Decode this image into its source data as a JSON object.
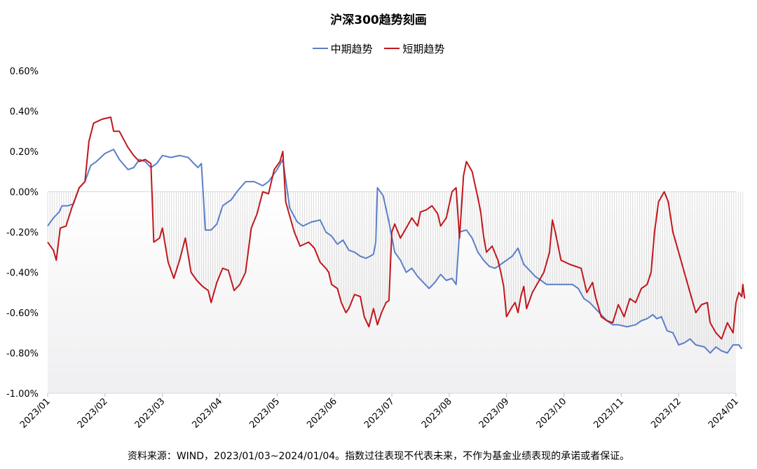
{
  "chart_data": {
    "type": "line",
    "title": "沪深300趋势刻画",
    "ylim": [
      -1.0,
      0.6
    ],
    "y_ticks": [
      "0.60%",
      "0.40%",
      "0.20%",
      "0.00%",
      "-0.20%",
      "-0.40%",
      "-0.60%",
      "-0.80%",
      "-1.00%"
    ],
    "x_ticks": [
      "2023/01",
      "2023/02",
      "2023/03",
      "2023/04",
      "2023/05",
      "2023/06",
      "2023/07",
      "2023/08",
      "2023/09",
      "2023/10",
      "2023/11",
      "2023/12",
      "2024/01"
    ],
    "legend_position": "top-center",
    "series": [
      {
        "name": "中期趋势",
        "color": "#5B7FC7",
        "points": [
          [
            0.0,
            -0.17
          ],
          [
            0.1,
            -0.13
          ],
          [
            0.2,
            -0.1
          ],
          [
            0.25,
            -0.07
          ],
          [
            0.35,
            -0.07
          ],
          [
            0.45,
            -0.06
          ],
          [
            0.55,
            0.02
          ],
          [
            0.65,
            0.05
          ],
          [
            0.75,
            0.13
          ],
          [
            0.85,
            0.15
          ],
          [
            1.0,
            0.19
          ],
          [
            1.15,
            0.21
          ],
          [
            1.25,
            0.16
          ],
          [
            1.4,
            0.11
          ],
          [
            1.5,
            0.12
          ],
          [
            1.6,
            0.16
          ],
          [
            1.7,
            0.15
          ],
          [
            1.8,
            0.12
          ],
          [
            1.9,
            0.14
          ],
          [
            2.0,
            0.18
          ],
          [
            2.15,
            0.17
          ],
          [
            2.3,
            0.18
          ],
          [
            2.45,
            0.17
          ],
          [
            2.55,
            0.14
          ],
          [
            2.62,
            0.12
          ],
          [
            2.68,
            0.14
          ],
          [
            2.75,
            -0.19
          ],
          [
            2.85,
            -0.19
          ],
          [
            2.95,
            -0.16
          ],
          [
            3.05,
            -0.07
          ],
          [
            3.2,
            -0.04
          ],
          [
            3.3,
            0.0
          ],
          [
            3.45,
            0.05
          ],
          [
            3.6,
            0.05
          ],
          [
            3.75,
            0.03
          ],
          [
            3.85,
            0.05
          ],
          [
            4.0,
            0.11
          ],
          [
            4.1,
            0.16
          ],
          [
            4.15,
            0.06
          ],
          [
            4.22,
            -0.08
          ],
          [
            4.35,
            -0.15
          ],
          [
            4.45,
            -0.17
          ],
          [
            4.6,
            -0.15
          ],
          [
            4.75,
            -0.14
          ],
          [
            4.85,
            -0.2
          ],
          [
            4.95,
            -0.22
          ],
          [
            5.05,
            -0.26
          ],
          [
            5.15,
            -0.24
          ],
          [
            5.25,
            -0.29
          ],
          [
            5.35,
            -0.3
          ],
          [
            5.45,
            -0.32
          ],
          [
            5.55,
            -0.33
          ],
          [
            5.62,
            -0.32
          ],
          [
            5.68,
            -0.31
          ],
          [
            5.72,
            -0.25
          ],
          [
            5.75,
            0.02
          ],
          [
            5.85,
            -0.02
          ],
          [
            5.95,
            -0.15
          ],
          [
            6.05,
            -0.3
          ],
          [
            6.15,
            -0.34
          ],
          [
            6.25,
            -0.4
          ],
          [
            6.35,
            -0.38
          ],
          [
            6.45,
            -0.42
          ],
          [
            6.55,
            -0.45
          ],
          [
            6.65,
            -0.48
          ],
          [
            6.75,
            -0.45
          ],
          [
            6.85,
            -0.41
          ],
          [
            6.95,
            -0.44
          ],
          [
            7.05,
            -0.43
          ],
          [
            7.12,
            -0.46
          ],
          [
            7.18,
            -0.2
          ],
          [
            7.3,
            -0.19
          ],
          [
            7.4,
            -0.23
          ],
          [
            7.5,
            -0.3
          ],
          [
            7.6,
            -0.34
          ],
          [
            7.7,
            -0.37
          ],
          [
            7.8,
            -0.38
          ],
          [
            7.9,
            -0.36
          ],
          [
            8.0,
            -0.34
          ],
          [
            8.1,
            -0.32
          ],
          [
            8.2,
            -0.28
          ],
          [
            8.3,
            -0.36
          ],
          [
            8.4,
            -0.39
          ],
          [
            8.5,
            -0.42
          ],
          [
            8.6,
            -0.44
          ],
          [
            8.7,
            -0.46
          ],
          [
            8.85,
            -0.46
          ],
          [
            9.0,
            -0.46
          ],
          [
            9.15,
            -0.46
          ],
          [
            9.25,
            -0.48
          ],
          [
            9.35,
            -0.53
          ],
          [
            9.45,
            -0.55
          ],
          [
            9.55,
            -0.58
          ],
          [
            9.65,
            -0.61
          ],
          [
            9.75,
            -0.64
          ],
          [
            9.85,
            -0.66
          ],
          [
            9.95,
            -0.66
          ],
          [
            10.1,
            -0.67
          ],
          [
            10.25,
            -0.66
          ],
          [
            10.35,
            -0.64
          ],
          [
            10.45,
            -0.63
          ],
          [
            10.55,
            -0.61
          ],
          [
            10.62,
            -0.63
          ],
          [
            10.7,
            -0.62
          ],
          [
            10.8,
            -0.69
          ],
          [
            10.9,
            -0.7
          ],
          [
            11.0,
            -0.76
          ],
          [
            11.1,
            -0.75
          ],
          [
            11.2,
            -0.73
          ],
          [
            11.3,
            -0.76
          ],
          [
            11.45,
            -0.77
          ],
          [
            11.55,
            -0.8
          ],
          [
            11.65,
            -0.77
          ],
          [
            11.75,
            -0.79
          ],
          [
            11.85,
            -0.8
          ],
          [
            11.95,
            -0.76
          ],
          [
            12.05,
            -0.76
          ],
          [
            12.1,
            -0.78
          ]
        ]
      },
      {
        "name": "短期趋势",
        "color": "#C0171D",
        "points": [
          [
            0.0,
            -0.25
          ],
          [
            0.1,
            -0.29
          ],
          [
            0.15,
            -0.34
          ],
          [
            0.22,
            -0.18
          ],
          [
            0.32,
            -0.17
          ],
          [
            0.42,
            -0.08
          ],
          [
            0.55,
            0.02
          ],
          [
            0.65,
            0.05
          ],
          [
            0.72,
            0.25
          ],
          [
            0.8,
            0.34
          ],
          [
            0.95,
            0.36
          ],
          [
            1.1,
            0.37
          ],
          [
            1.15,
            0.3
          ],
          [
            1.25,
            0.3
          ],
          [
            1.4,
            0.22
          ],
          [
            1.5,
            0.18
          ],
          [
            1.6,
            0.15
          ],
          [
            1.7,
            0.16
          ],
          [
            1.8,
            0.14
          ],
          [
            1.85,
            -0.25
          ],
          [
            1.95,
            -0.23
          ],
          [
            2.0,
            -0.18
          ],
          [
            2.1,
            -0.35
          ],
          [
            2.2,
            -0.43
          ],
          [
            2.3,
            -0.34
          ],
          [
            2.4,
            -0.23
          ],
          [
            2.5,
            -0.4
          ],
          [
            2.6,
            -0.44
          ],
          [
            2.7,
            -0.47
          ],
          [
            2.8,
            -0.49
          ],
          [
            2.85,
            -0.55
          ],
          [
            2.95,
            -0.45
          ],
          [
            3.05,
            -0.38
          ],
          [
            3.15,
            -0.39
          ],
          [
            3.25,
            -0.49
          ],
          [
            3.35,
            -0.46
          ],
          [
            3.45,
            -0.4
          ],
          [
            3.55,
            -0.18
          ],
          [
            3.65,
            -0.11
          ],
          [
            3.75,
            0.0
          ],
          [
            3.85,
            -0.01
          ],
          [
            3.95,
            0.11
          ],
          [
            4.05,
            0.15
          ],
          [
            4.1,
            0.2
          ],
          [
            4.15,
            -0.05
          ],
          [
            4.22,
            -0.12
          ],
          [
            4.3,
            -0.2
          ],
          [
            4.4,
            -0.27
          ],
          [
            4.55,
            -0.25
          ],
          [
            4.65,
            -0.28
          ],
          [
            4.75,
            -0.35
          ],
          [
            4.85,
            -0.38
          ],
          [
            4.9,
            -0.4
          ],
          [
            4.95,
            -0.46
          ],
          [
            5.05,
            -0.48
          ],
          [
            5.12,
            -0.55
          ],
          [
            5.2,
            -0.6
          ],
          [
            5.25,
            -0.58
          ],
          [
            5.35,
            -0.51
          ],
          [
            5.45,
            -0.52
          ],
          [
            5.52,
            -0.62
          ],
          [
            5.6,
            -0.67
          ],
          [
            5.68,
            -0.58
          ],
          [
            5.75,
            -0.66
          ],
          [
            5.82,
            -0.6
          ],
          [
            5.9,
            -0.55
          ],
          [
            5.95,
            -0.54
          ],
          [
            6.0,
            -0.2
          ],
          [
            6.05,
            -0.16
          ],
          [
            6.15,
            -0.23
          ],
          [
            6.25,
            -0.18
          ],
          [
            6.35,
            -0.13
          ],
          [
            6.45,
            -0.17
          ],
          [
            6.5,
            -0.1
          ],
          [
            6.6,
            -0.09
          ],
          [
            6.7,
            -0.07
          ],
          [
            6.8,
            -0.11
          ],
          [
            6.85,
            -0.17
          ],
          [
            6.95,
            -0.13
          ],
          [
            7.05,
            0.0
          ],
          [
            7.12,
            0.02
          ],
          [
            7.18,
            -0.23
          ],
          [
            7.25,
            0.08
          ],
          [
            7.3,
            0.15
          ],
          [
            7.4,
            0.1
          ],
          [
            7.5,
            -0.03
          ],
          [
            7.55,
            -0.1
          ],
          [
            7.6,
            -0.22
          ],
          [
            7.65,
            -0.3
          ],
          [
            7.75,
            -0.27
          ],
          [
            7.85,
            -0.34
          ],
          [
            7.9,
            -0.4
          ],
          [
            7.95,
            -0.47
          ],
          [
            8.0,
            -0.62
          ],
          [
            8.1,
            -0.57
          ],
          [
            8.15,
            -0.55
          ],
          [
            8.2,
            -0.6
          ],
          [
            8.25,
            -0.52
          ],
          [
            8.3,
            -0.47
          ],
          [
            8.35,
            -0.58
          ],
          [
            8.45,
            -0.5
          ],
          [
            8.55,
            -0.45
          ],
          [
            8.65,
            -0.4
          ],
          [
            8.75,
            -0.3
          ],
          [
            8.8,
            -0.14
          ],
          [
            8.85,
            -0.2
          ],
          [
            8.95,
            -0.34
          ],
          [
            9.1,
            -0.36
          ],
          [
            9.3,
            -0.38
          ],
          [
            9.4,
            -0.5
          ],
          [
            9.5,
            -0.45
          ],
          [
            9.55,
            -0.52
          ],
          [
            9.65,
            -0.62
          ],
          [
            9.75,
            -0.64
          ],
          [
            9.85,
            -0.65
          ],
          [
            9.95,
            -0.56
          ],
          [
            10.05,
            -0.62
          ],
          [
            10.15,
            -0.53
          ],
          [
            10.25,
            -0.55
          ],
          [
            10.35,
            -0.48
          ],
          [
            10.45,
            -0.46
          ],
          [
            10.52,
            -0.4
          ],
          [
            10.58,
            -0.2
          ],
          [
            10.65,
            -0.05
          ],
          [
            10.75,
            0.0
          ],
          [
            10.82,
            -0.05
          ],
          [
            10.9,
            -0.2
          ],
          [
            11.0,
            -0.3
          ],
          [
            11.1,
            -0.4
          ],
          [
            11.2,
            -0.5
          ],
          [
            11.3,
            -0.6
          ],
          [
            11.4,
            -0.56
          ],
          [
            11.5,
            -0.55
          ],
          [
            11.55,
            -0.65
          ],
          [
            11.65,
            -0.7
          ],
          [
            11.75,
            -0.73
          ],
          [
            11.85,
            -0.65
          ],
          [
            11.95,
            -0.7
          ],
          [
            12.0,
            -0.55
          ],
          [
            12.05,
            -0.5
          ],
          [
            12.1,
            -0.52
          ],
          [
            12.12,
            -0.46
          ],
          [
            12.15,
            -0.53
          ]
        ]
      }
    ]
  },
  "footnote": "资料来源：WIND，2023/01/03~2024/01/04。指数过往表现不代表未来，不作为基金业绩表现的承诺或者保证。"
}
